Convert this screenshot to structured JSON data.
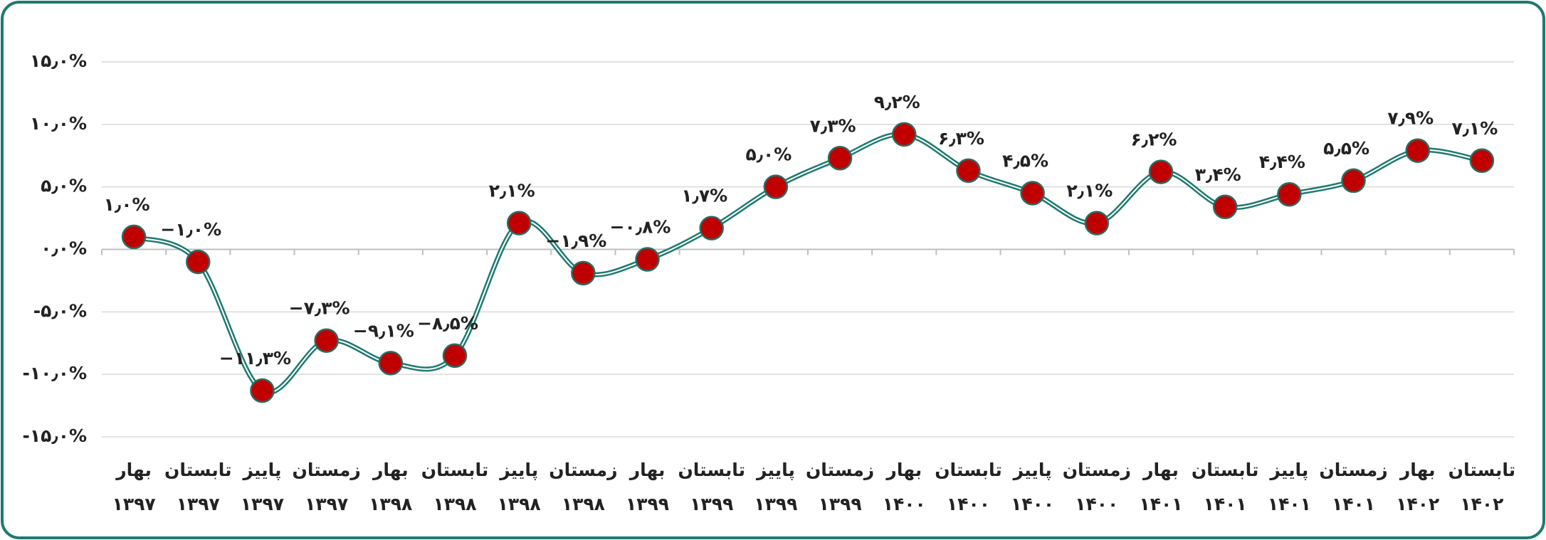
{
  "chart_data": {
    "type": "line",
    "categories": [
      [
        "بهار",
        "۱۳۹۷"
      ],
      [
        "تابستان",
        "۱۳۹۷"
      ],
      [
        "پاییز",
        "۱۳۹۷"
      ],
      [
        "زمستان",
        "۱۳۹۷"
      ],
      [
        "بهار",
        "۱۳۹۸"
      ],
      [
        "تابستان",
        "۱۳۹۸"
      ],
      [
        "پاییز",
        "۱۳۹۸"
      ],
      [
        "زمستان",
        "۱۳۹۸"
      ],
      [
        "بهار",
        "۱۳۹۹"
      ],
      [
        "تابستان",
        "۱۳۹۹"
      ],
      [
        "پاییز",
        "۱۳۹۹"
      ],
      [
        "زمستان",
        "۱۳۹۹"
      ],
      [
        "بهار",
        "۱۴۰۰"
      ],
      [
        "تابستان",
        "۱۴۰۰"
      ],
      [
        "پاییز",
        "۱۴۰۰"
      ],
      [
        "زمستان",
        "۱۴۰۰"
      ],
      [
        "بهار",
        "۱۴۰۱"
      ],
      [
        "تابستان",
        "۱۴۰۱"
      ],
      [
        "پاییز",
        "۱۴۰۱"
      ],
      [
        "زمستان",
        "۱۴۰۱"
      ],
      [
        "بهار",
        "۱۴۰۲"
      ],
      [
        "تابستان",
        "۱۴۰۲"
      ]
    ],
    "values": [
      1.0,
      -1.0,
      -11.3,
      -7.3,
      -9.1,
      -8.5,
      2.1,
      -1.9,
      -0.8,
      1.7,
      5.0,
      7.3,
      9.2,
      6.3,
      4.5,
      2.1,
      6.2,
      3.4,
      4.4,
      5.5,
      7.9,
      7.1
    ],
    "value_labels": [
      "۱٫۰%",
      "−۱٫۰%",
      "−۱۱٫۳%",
      "−۷٫۳%",
      "−۹٫۱%",
      "−۸٫۵%",
      "۲٫۱%",
      "−۱٫۹%",
      "−۰٫۸%",
      "۱٫۷%",
      "۵٫۰%",
      "۷٫۳%",
      "۹٫۲%",
      "۶٫۳%",
      "۴٫۵%",
      "۲٫۱%",
      "۶٫۲%",
      "۳٫۴%",
      "۴٫۴%",
      "۵٫۵%",
      "۷٫۹%",
      "۷٫۱%"
    ],
    "color": "#1f7a70",
    "marker_color": "#c00000",
    "ylim": [
      -15,
      15
    ],
    "yticks": [
      {
        "value": 15,
        "label": "۱۵٫۰%"
      },
      {
        "value": 10,
        "label": "۱۰٫۰%"
      },
      {
        "value": 5,
        "label": "۵٫۰%"
      },
      {
        "value": 0,
        "label": "۰٫۰%"
      },
      {
        "value": -5,
        "label": "-۵٫۰%"
      },
      {
        "value": -10,
        "label": "-۱۰٫۰%"
      },
      {
        "value": -15,
        "label": "-۱۵٫۰%"
      }
    ],
    "grid": true
  }
}
